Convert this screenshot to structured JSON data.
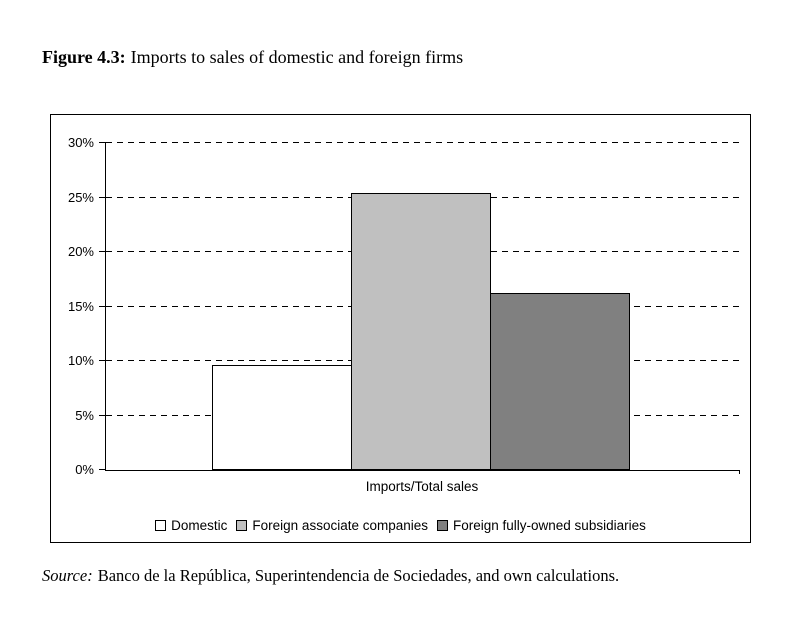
{
  "title": {
    "prefix": "Figure 4.3:",
    "text": "Imports to sales of domestic and foreign firms"
  },
  "source": {
    "prefix": "Source:",
    "text": "Banco de la República, Superintendencia de Sociedades, and own calculations."
  },
  "chart_data": {
    "type": "bar",
    "categories": [
      "Imports/Total sales"
    ],
    "series": [
      {
        "name": "Domestic",
        "values": [
          9.6
        ],
        "color": "#FFFFFF"
      },
      {
        "name": "Foreign associate companies",
        "values": [
          25.4
        ],
        "color": "#C0C0C0"
      },
      {
        "name": "Foreign fully-owned subsidiaries",
        "values": [
          16.2
        ],
        "color": "#808080"
      }
    ],
    "title": "",
    "xlabel": "Imports/Total sales",
    "ylabel": "",
    "ylim": [
      0,
      30
    ],
    "ytick_step": 5,
    "ytick_labels": [
      "0%",
      "5%",
      "10%",
      "15%",
      "20%",
      "25%",
      "30%"
    ],
    "grid": "horizontal-dashed",
    "legend_position": "bottom"
  }
}
